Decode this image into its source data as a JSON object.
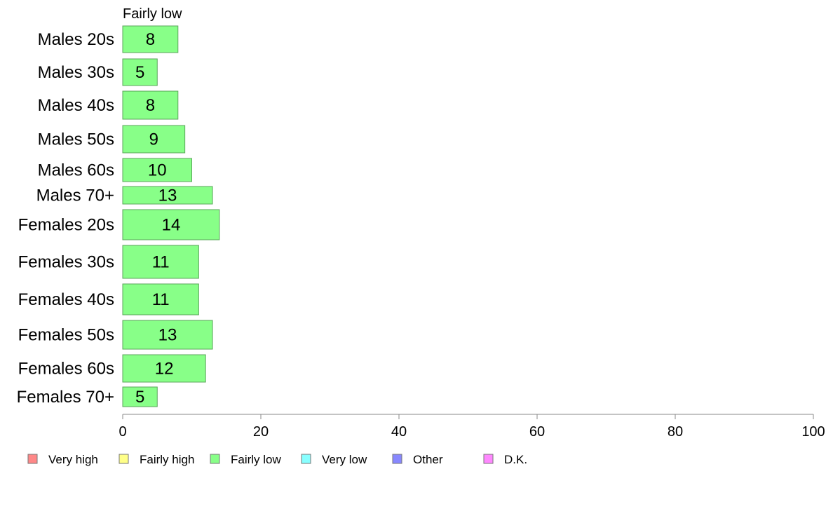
{
  "chart_data": {
    "type": "bar",
    "orientation": "horizontal",
    "title": "Fairly low",
    "categories": [
      "Males 20s",
      "Males 30s",
      "Males 40s",
      "Males 50s",
      "Males 60s",
      "Males 70+",
      "Females 20s",
      "Females 30s",
      "Females 40s",
      "Females 50s",
      "Females 60s",
      "Females 70+"
    ],
    "series": [
      {
        "name": "Fairly low",
        "color": "#88ff88",
        "values": [
          8,
          5,
          8,
          9,
          10,
          13,
          14,
          11,
          11,
          13,
          12,
          5
        ]
      }
    ],
    "xlim": [
      0,
      100
    ],
    "xticks": [
      "0",
      "20",
      "40",
      "60",
      "80",
      "100"
    ],
    "grid": false,
    "legend_position": "bottom",
    "legend": [
      {
        "label": "Very high",
        "color": "#ff8888"
      },
      {
        "label": "Fairly high",
        "color": "#ffff88"
      },
      {
        "label": "Fairly low",
        "color": "#88ff88"
      },
      {
        "label": "Very low",
        "color": "#88ffff"
      },
      {
        "label": "Other",
        "color": "#8888ff"
      },
      {
        "label": "D.K.",
        "color": "#ff88ff"
      }
    ]
  }
}
